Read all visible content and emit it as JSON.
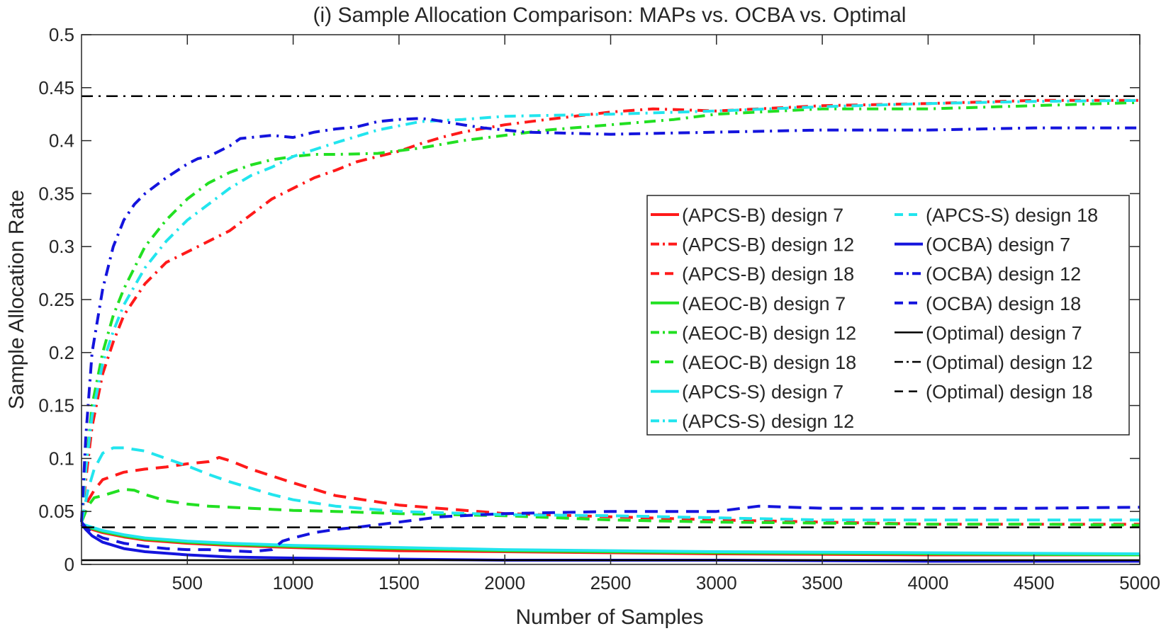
{
  "chart_data": {
    "type": "line",
    "title": "(i) Sample Allocation Comparison: MAPs vs. OCBA vs. Optimal",
    "xlabel": "Number of Samples",
    "ylabel": "Sample Allocation Rate",
    "xlim": [
      0,
      5000
    ],
    "ylim": [
      0,
      0.5
    ],
    "xticks": [
      500,
      1000,
      1500,
      2000,
      2500,
      3000,
      3500,
      4000,
      4500,
      5000
    ],
    "xtick_labels": [
      "500",
      "1000",
      "1500",
      "2000",
      "2500",
      "3000",
      "3500",
      "4000",
      "4500",
      "5000"
    ],
    "yticks": [
      0,
      0.05,
      0.1,
      0.15,
      0.2,
      0.25,
      0.3,
      0.35,
      0.4,
      0.45,
      0.5
    ],
    "ytick_labels": [
      "0",
      "0.05",
      "0.1",
      "0.15",
      "0.2",
      "0.25",
      "0.3",
      "0.35",
      "0.4",
      "0.45",
      "0.5"
    ],
    "legend_position": "right-middle",
    "series": [
      {
        "name": "(APCS-B) design 7",
        "color": "#ff1a1a",
        "dash": "solid",
        "x": [
          0,
          20,
          50,
          100,
          200,
          300,
          500,
          700,
          1000,
          1500,
          2000,
          3000,
          4000,
          5000
        ],
        "y": [
          0.038,
          0.036,
          0.033,
          0.03,
          0.026,
          0.023,
          0.02,
          0.018,
          0.016,
          0.013,
          0.012,
          0.01,
          0.009,
          0.009
        ]
      },
      {
        "name": "(APCS-B) design 12",
        "color": "#ff1a1a",
        "dash": "dashdot",
        "x": [
          0,
          20,
          50,
          100,
          150,
          200,
          300,
          400,
          500,
          600,
          700,
          800,
          900,
          1000,
          1100,
          1200,
          1300,
          1400,
          1500,
          1600,
          1700,
          1800,
          2000,
          2200,
          2500,
          2700,
          3000,
          3500,
          4000,
          4500,
          5000
        ],
        "y": [
          0.04,
          0.08,
          0.13,
          0.18,
          0.21,
          0.235,
          0.265,
          0.285,
          0.295,
          0.305,
          0.315,
          0.33,
          0.345,
          0.355,
          0.365,
          0.372,
          0.38,
          0.385,
          0.39,
          0.397,
          0.403,
          0.408,
          0.415,
          0.42,
          0.427,
          0.43,
          0.428,
          0.433,
          0.435,
          0.438,
          0.438
        ]
      },
      {
        "name": "(APCS-B) design 18",
        "color": "#ff1a1a",
        "dash": "dashed",
        "x": [
          0,
          30,
          60,
          100,
          200,
          300,
          400,
          500,
          600,
          650,
          700,
          800,
          1000,
          1200,
          1500,
          2000,
          2500,
          3000,
          3500,
          4000,
          4500,
          5000
        ],
        "y": [
          0.04,
          0.06,
          0.07,
          0.08,
          0.087,
          0.09,
          0.092,
          0.095,
          0.097,
          0.101,
          0.098,
          0.09,
          0.077,
          0.065,
          0.056,
          0.048,
          0.045,
          0.042,
          0.04,
          0.038,
          0.038,
          0.038
        ]
      },
      {
        "name": "(AEOC-B) design 7",
        "color": "#22e022",
        "dash": "solid",
        "x": [
          0,
          20,
          50,
          100,
          200,
          300,
          500,
          700,
          1000,
          1500,
          2000,
          3000,
          4000,
          5000
        ],
        "y": [
          0.038,
          0.036,
          0.034,
          0.031,
          0.027,
          0.024,
          0.021,
          0.019,
          0.017,
          0.015,
          0.013,
          0.011,
          0.01,
          0.009
        ]
      },
      {
        "name": "(AEOC-B) design 12",
        "color": "#22e022",
        "dash": "dashdot",
        "x": [
          0,
          20,
          50,
          100,
          150,
          200,
          300,
          400,
          500,
          600,
          700,
          800,
          900,
          1000,
          1100,
          1200,
          1400,
          1600,
          1800,
          2000,
          2200,
          2500,
          2800,
          3000,
          3500,
          4000,
          4500,
          5000
        ],
        "y": [
          0.04,
          0.09,
          0.15,
          0.2,
          0.235,
          0.26,
          0.3,
          0.325,
          0.345,
          0.36,
          0.37,
          0.377,
          0.382,
          0.385,
          0.387,
          0.387,
          0.388,
          0.393,
          0.4,
          0.405,
          0.41,
          0.415,
          0.42,
          0.425,
          0.43,
          0.43,
          0.433,
          0.436
        ]
      },
      {
        "name": "(AEOC-B) design 18",
        "color": "#22e022",
        "dash": "dashed",
        "x": [
          0,
          30,
          60,
          100,
          150,
          200,
          250,
          300,
          400,
          500,
          600,
          700,
          800,
          900,
          1000,
          1200,
          1500,
          2000,
          2500,
          3000,
          3500,
          4000,
          4500,
          5000
        ],
        "y": [
          0.04,
          0.055,
          0.063,
          0.065,
          0.068,
          0.071,
          0.07,
          0.066,
          0.06,
          0.057,
          0.055,
          0.054,
          0.053,
          0.052,
          0.051,
          0.05,
          0.048,
          0.046,
          0.042,
          0.04,
          0.039,
          0.038,
          0.038,
          0.037
        ]
      },
      {
        "name": "(APCS-S) design 7",
        "color": "#22e5ee",
        "dash": "solid",
        "x": [
          0,
          20,
          50,
          100,
          200,
          300,
          500,
          700,
          1000,
          1500,
          2000,
          3000,
          4000,
          5000
        ],
        "y": [
          0.038,
          0.037,
          0.035,
          0.032,
          0.028,
          0.025,
          0.022,
          0.02,
          0.018,
          0.016,
          0.014,
          0.012,
          0.011,
          0.01
        ]
      },
      {
        "name": "(APCS-S) design 12",
        "color": "#22e5ee",
        "dash": "dashdot",
        "x": [
          0,
          20,
          50,
          100,
          150,
          200,
          300,
          400,
          500,
          600,
          700,
          800,
          900,
          1000,
          1200,
          1400,
          1600,
          1800,
          2000,
          2500,
          3000,
          3500,
          4000,
          4500,
          5000
        ],
        "y": [
          0.04,
          0.09,
          0.14,
          0.19,
          0.22,
          0.245,
          0.28,
          0.305,
          0.325,
          0.34,
          0.355,
          0.367,
          0.375,
          0.385,
          0.398,
          0.41,
          0.418,
          0.42,
          0.423,
          0.425,
          0.428,
          0.432,
          0.435,
          0.437,
          0.438
        ]
      },
      {
        "name": "(APCS-S) design 18",
        "color": "#22e5ee",
        "dash": "dashed",
        "x": [
          0,
          30,
          60,
          100,
          150,
          200,
          300,
          400,
          500,
          600,
          700,
          800,
          900,
          1000,
          1200,
          1500,
          2000,
          2500,
          3000,
          3500,
          4000,
          4500,
          5000
        ],
        "y": [
          0.04,
          0.07,
          0.09,
          0.105,
          0.11,
          0.11,
          0.107,
          0.1,
          0.093,
          0.085,
          0.078,
          0.072,
          0.066,
          0.061,
          0.055,
          0.05,
          0.047,
          0.046,
          0.044,
          0.042,
          0.042,
          0.042,
          0.042
        ]
      },
      {
        "name": "(OCBA) design 7",
        "color": "#1414dd",
        "dash": "solid",
        "x": [
          0,
          20,
          50,
          100,
          200,
          300,
          500,
          700,
          1000,
          1500,
          2000,
          3000,
          4000,
          5000
        ],
        "y": [
          0.038,
          0.033,
          0.027,
          0.021,
          0.015,
          0.012,
          0.009,
          0.007,
          0.006,
          0.005,
          0.004,
          0.004,
          0.003,
          0.003
        ]
      },
      {
        "name": "(OCBA) design 12",
        "color": "#1414dd",
        "dash": "dashdot",
        "x": [
          0,
          20,
          50,
          100,
          150,
          200,
          250,
          300,
          400,
          500,
          550,
          600,
          700,
          750,
          800,
          900,
          1000,
          1100,
          1200,
          1300,
          1400,
          1500,
          1600,
          1650,
          1800,
          1900,
          2000,
          2100,
          2500,
          3000,
          3500,
          4000,
          4500,
          5000
        ],
        "y": [
          0.04,
          0.12,
          0.2,
          0.26,
          0.3,
          0.325,
          0.34,
          0.35,
          0.365,
          0.378,
          0.383,
          0.385,
          0.395,
          0.402,
          0.403,
          0.405,
          0.403,
          0.408,
          0.411,
          0.413,
          0.418,
          0.42,
          0.421,
          0.42,
          0.415,
          0.412,
          0.41,
          0.408,
          0.406,
          0.408,
          0.41,
          0.41,
          0.412,
          0.412
        ]
      },
      {
        "name": "(OCBA) design 18",
        "color": "#1414dd",
        "dash": "dashed",
        "x": [
          0,
          20,
          50,
          100,
          200,
          300,
          400,
          500,
          600,
          700,
          800,
          900,
          950,
          1000,
          1100,
          1200,
          1300,
          1500,
          1700,
          2000,
          2500,
          3000,
          3200,
          3500,
          4000,
          4500,
          5000
        ],
        "y": [
          0.04,
          0.035,
          0.03,
          0.025,
          0.02,
          0.017,
          0.015,
          0.014,
          0.014,
          0.013,
          0.012,
          0.014,
          0.022,
          0.025,
          0.03,
          0.033,
          0.035,
          0.04,
          0.045,
          0.048,
          0.05,
          0.05,
          0.055,
          0.053,
          0.053,
          0.053,
          0.054
        ]
      },
      {
        "name": "(Optimal) design 7",
        "color": "#000000",
        "dash": "solid",
        "x": [
          0,
          5000
        ],
        "y": [
          0.004,
          0.004
        ]
      },
      {
        "name": "(Optimal) design 12",
        "color": "#000000",
        "dash": "dashdot",
        "x": [
          0,
          5000
        ],
        "y": [
          0.442,
          0.442
        ]
      },
      {
        "name": "(Optimal) design 18",
        "color": "#000000",
        "dash": "dashed",
        "x": [
          0,
          5000
        ],
        "y": [
          0.035,
          0.035
        ]
      }
    ]
  }
}
